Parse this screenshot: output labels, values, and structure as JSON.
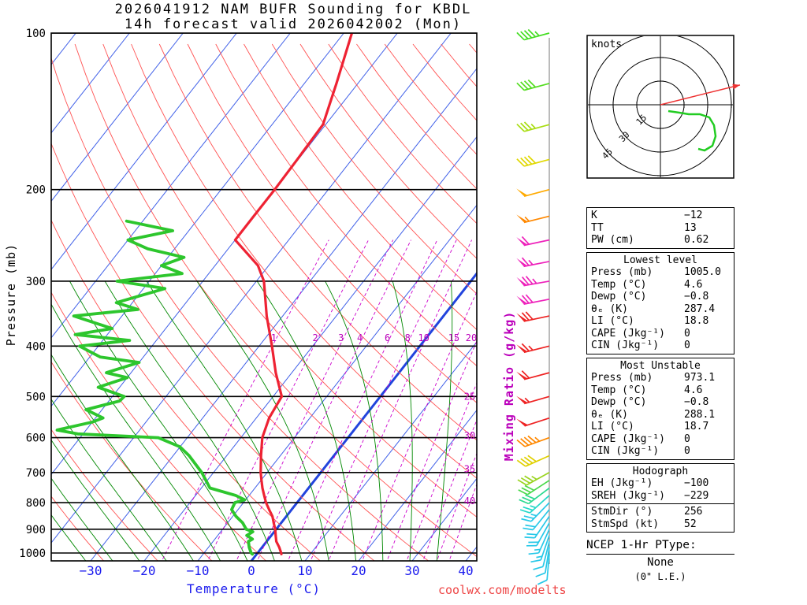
{
  "header": {
    "title_line1": "2026041912 NAM BUFR Sounding for KBDL",
    "title_line2": "14h forecast valid 2026042002 (Mon)"
  },
  "watermark": "coolwx.com/modelts",
  "axes": {
    "pressure_label": "Pressure (mb)",
    "pressure_ticks": [
      100,
      200,
      300,
      400,
      500,
      600,
      700,
      800,
      900,
      1000
    ],
    "temperature_label": "Temperature (°C)",
    "temperature_ticks": [
      -30,
      -20,
      -10,
      0,
      10,
      20,
      30,
      40
    ],
    "mixing_ratio_label": "Mixing Ratio (g/kg)",
    "mixing_ratio_lines": [
      1,
      2,
      3,
      4,
      6,
      8,
      10,
      15,
      20,
      25,
      30,
      35,
      40
    ]
  },
  "chart_data": {
    "type": "skew-t log-p sounding",
    "pressure_range_mb": [
      100,
      1050
    ],
    "temperature_axis_range_c": [
      -30,
      40
    ],
    "isotherm_step_c": 10,
    "temperature_profile": {
      "pressure_mb": [
        1005,
        1000,
        975,
        950,
        925,
        900,
        875,
        850,
        825,
        800,
        775,
        750,
        725,
        700,
        650,
        600,
        550,
        500,
        450,
        400,
        350,
        300,
        280,
        250,
        225,
        200,
        175,
        150,
        125,
        100
      ],
      "temp_c": [
        4.6,
        4.4,
        3.2,
        1.8,
        0.8,
        -0.2,
        -1.4,
        -2.6,
        -4.2,
        -5.8,
        -7.2,
        -8.6,
        -9.9,
        -11.2,
        -13.6,
        -16.0,
        -17.6,
        -18.4,
        -23.0,
        -27.6,
        -33.0,
        -38.6,
        -42.0,
        -50.0,
        -50.0,
        -50.0,
        -50.2,
        -50.5,
        -54.0,
        -58.5
      ]
    },
    "dewpoint_profile": {
      "pressure_mb": [
        1005,
        1000,
        975,
        950,
        940,
        925,
        910,
        900,
        875,
        850,
        825,
        800,
        790,
        775,
        750,
        700,
        650,
        625,
        600,
        590,
        580,
        560,
        550,
        530,
        510,
        500,
        480,
        460,
        450,
        430,
        420,
        400,
        390,
        380,
        370,
        350,
        340,
        330,
        310,
        300,
        290,
        280,
        270,
        260,
        250,
        240,
        230
      ],
      "dewp_c": [
        -0.8,
        -1.2,
        -2.4,
        -3.4,
        -3.0,
        -4.6,
        -4.0,
        -5.6,
        -7.2,
        -9.4,
        -11.2,
        -11.6,
        -10.2,
        -12.5,
        -18.4,
        -22.2,
        -27.0,
        -30.0,
        -35.4,
        -51.0,
        -55.4,
        -50.0,
        -48.6,
        -53.0,
        -48.0,
        -47.8,
        -54.0,
        -50.0,
        -54.6,
        -50.0,
        -58.0,
        -63.5,
        -55.0,
        -66.0,
        -60.0,
        -69.0,
        -58.0,
        -63.0,
        -56.0,
        -66.0,
        -55.0,
        -60.0,
        -57.0,
        -65.0,
        -70.0,
        -63.0,
        -73.0
      ]
    },
    "wind_profile_kt": [
      {
        "p": 100,
        "dir": 255,
        "spd": 45,
        "color": "#44dd22"
      },
      {
        "p": 125,
        "dir": 255,
        "spd": 40,
        "color": "#55dd22"
      },
      {
        "p": 150,
        "dir": 255,
        "spd": 35,
        "color": "#a8dd10"
      },
      {
        "p": 175,
        "dir": 255,
        "spd": 40,
        "color": "#e0d800"
      },
      {
        "p": 200,
        "dir": 255,
        "spd": 50,
        "color": "#ffaa00"
      },
      {
        "p": 225,
        "dir": 256,
        "spd": 55,
        "color": "#ff8800"
      },
      {
        "p": 250,
        "dir": 258,
        "spd": 60,
        "color": "#ee22bb"
      },
      {
        "p": 275,
        "dir": 259,
        "spd": 65,
        "color": "#ee22bb"
      },
      {
        "p": 300,
        "dir": 260,
        "spd": 75,
        "color": "#ee22bb"
      },
      {
        "p": 325,
        "dir": 259,
        "spd": 72,
        "color": "#ee22bb"
      },
      {
        "p": 350,
        "dir": 258,
        "spd": 70,
        "color": "#ee2222"
      },
      {
        "p": 400,
        "dir": 256,
        "spd": 65,
        "color": "#ee2222"
      },
      {
        "p": 450,
        "dir": 255,
        "spd": 60,
        "color": "#ee2222"
      },
      {
        "p": 500,
        "dir": 254,
        "spd": 55,
        "color": "#ee2222"
      },
      {
        "p": 550,
        "dir": 252,
        "spd": 50,
        "color": "#ee2222"
      },
      {
        "p": 600,
        "dir": 250,
        "spd": 45,
        "color": "#ff8800"
      },
      {
        "p": 650,
        "dir": 246,
        "spd": 40,
        "color": "#e0d000"
      },
      {
        "p": 700,
        "dir": 241,
        "spd": 35,
        "color": "#9ad420"
      },
      {
        "p": 725,
        "dir": 237,
        "spd": 32,
        "color": "#4ad94a"
      },
      {
        "p": 750,
        "dir": 233,
        "spd": 30,
        "color": "#2bd98f"
      },
      {
        "p": 775,
        "dir": 228,
        "spd": 27,
        "color": "#24d8c8"
      },
      {
        "p": 800,
        "dir": 224,
        "spd": 25,
        "color": "#27c8e8"
      },
      {
        "p": 825,
        "dir": 219,
        "spd": 22,
        "color": "#27c8e8"
      },
      {
        "p": 850,
        "dir": 214,
        "spd": 20,
        "color": "#27c8e8"
      },
      {
        "p": 875,
        "dir": 209,
        "spd": 18,
        "color": "#27c8e8"
      },
      {
        "p": 900,
        "dir": 204,
        "spd": 16,
        "color": "#27c8e8"
      },
      {
        "p": 925,
        "dir": 199,
        "spd": 14,
        "color": "#27c8e8"
      },
      {
        "p": 950,
        "dir": 194,
        "spd": 12,
        "color": "#27c8e8"
      },
      {
        "p": 975,
        "dir": 189,
        "spd": 11,
        "color": "#27c8e8"
      },
      {
        "p": 1005,
        "dir": 185,
        "spd": 10,
        "color": "#27c8e8"
      }
    ],
    "colors": {
      "temperature_trace": "#ee2233",
      "dewpoint_trace": "#2dc62d",
      "isotherm": "#4060e8",
      "isotherm_zero": "#2244dd",
      "dry_adiabat": "#ff5252",
      "moist_adiabat": "#008800",
      "mixing_ratio": "#cc00cc",
      "pressure_line": "#000000",
      "axis_label_blue": "#1a1aee"
    }
  },
  "hodograph": {
    "unit_label": "knots",
    "rings_kt": [
      15,
      30,
      45
    ],
    "ring_labels": [
      "15",
      "30",
      "45"
    ],
    "storm_dir_deg": 256,
    "storm_speed_kt": 52,
    "trace_uv_kt": [
      [
        5,
        -4
      ],
      [
        12,
        -5
      ],
      [
        18,
        -6
      ],
      [
        25,
        -6
      ],
      [
        31,
        -8
      ],
      [
        34,
        -13
      ],
      [
        35,
        -20
      ],
      [
        33,
        -26
      ],
      [
        28,
        -29
      ],
      [
        24,
        -28
      ]
    ],
    "trace_color": "#22cc22",
    "storm_vector_color": "#ee3333"
  },
  "panels": {
    "indices": {
      "rows": [
        {
          "label": "K",
          "value": "−12"
        },
        {
          "label": "TT",
          "value": "13"
        },
        {
          "label": "PW (cm)",
          "value": "0.62"
        }
      ]
    },
    "lowest": {
      "title": "Lowest level",
      "rows": [
        {
          "label": "Press (mb)",
          "value": "1005.0"
        },
        {
          "label": "Temp (°C)",
          "value": "4.6"
        },
        {
          "label": "Dewp (°C)",
          "value": "−0.8"
        },
        {
          "label": "θₑ (K)",
          "value": "287.4"
        },
        {
          "label": "LI (°C)",
          "value": "18.8"
        },
        {
          "label": "CAPE (Jkg⁻¹)",
          "value": "0"
        },
        {
          "label": "CIN (Jkg⁻¹)",
          "value": "0"
        }
      ]
    },
    "most_unstable": {
      "title": "Most Unstable",
      "rows": [
        {
          "label": "Press (mb)",
          "value": "973.1"
        },
        {
          "label": "Temp (°C)",
          "value": "4.6"
        },
        {
          "label": "Dewp (°C)",
          "value": "−0.8"
        },
        {
          "label": "θₑ (K)",
          "value": "288.1"
        },
        {
          "label": "LI (°C)",
          "value": "18.7"
        },
        {
          "label": "CAPE (Jkg⁻¹)",
          "value": "0"
        },
        {
          "label": "CIN (Jkg⁻¹)",
          "value": "0"
        }
      ]
    },
    "hodograph_stats": {
      "title": "Hodograph",
      "rows": [
        {
          "label": "EH (Jkg⁻¹)",
          "value": "−100"
        },
        {
          "label": "SREH (Jkg⁻¹)",
          "value": "−229"
        }
      ],
      "rows2": [
        {
          "label": "StmDir (°)",
          "value": "256"
        },
        {
          "label": "StmSpd (kt)",
          "value": "52"
        }
      ]
    }
  },
  "ptype": {
    "title": "NCEP 1-Hr PType:",
    "value": "None",
    "note": "(0\" L.E.)"
  }
}
